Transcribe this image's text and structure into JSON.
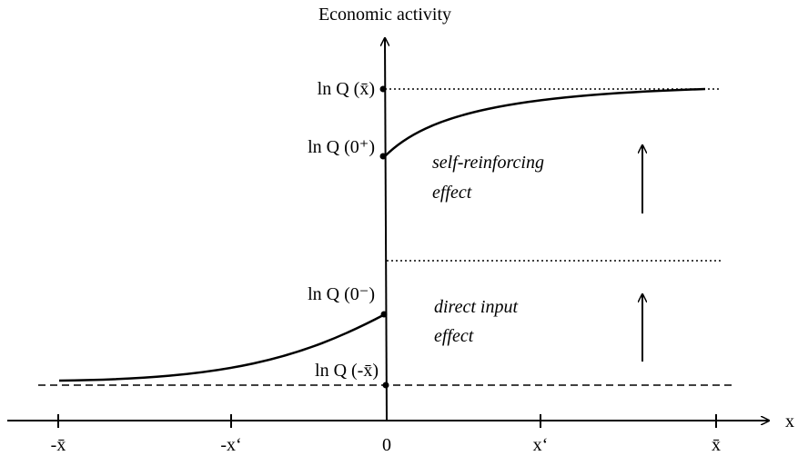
{
  "title": "Economic activity",
  "x_axis": {
    "label": "x",
    "ticks": [
      "-x̄",
      "-x‘",
      "0",
      "x‘",
      "x̄"
    ]
  },
  "points": [
    "ln Q (x̄)",
    "ln Q (0⁺)",
    "ln Q (0⁻)",
    "ln Q (-x̄)"
  ],
  "annotations": [
    {
      "lines": [
        "self-reinforcing",
        "effect"
      ]
    },
    {
      "lines": [
        "direct input",
        "effect"
      ]
    }
  ]
}
